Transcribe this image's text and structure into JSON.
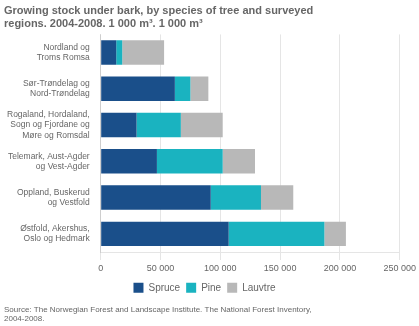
{
  "chart_data": {
    "type": "bar",
    "orientation": "horizontal",
    "stacked": true,
    "title": "Growing stock under bark, by species of tree and surveyed\nregions. 2004-2008. 1 000 m³. 1 000 m³",
    "annotations": [
      "Source: The Norwegian Forest and Landscape Institute. The National Forest Inventory,\n2004-2008."
    ],
    "categories": [
      "Nordland og\nTroms Romsa",
      "Sør-Trøndelag og\nNord-Trøndelag",
      "Rogaland, Hordaland,\nSogn og Fjordane og\nMøre og Romsdal",
      "Telemark, Aust-Agder\nog Vest-Agder",
      "Oppland, Buskerud\nog Vestfold",
      "Østfold, Akershus,\nOslo og Hedmark"
    ],
    "series": [
      {
        "name": "Spruce",
        "color": "#1a4f8a",
        "values": [
          13000,
          62000,
          30000,
          47000,
          92000,
          107000
        ]
      },
      {
        "name": "Pine",
        "color": "#1ab3c0",
        "values": [
          5000,
          13000,
          37000,
          55000,
          42000,
          80000
        ]
      },
      {
        "name": "Lauvtre",
        "color": "#b8b8b8",
        "values": [
          35000,
          15000,
          35000,
          27000,
          27000,
          18000
        ]
      }
    ],
    "xlim": [
      0,
      250000
    ],
    "xticks": [
      0,
      {
        "value": 50000,
        "label": "50 000"
      },
      {
        "value": 100000,
        "label": "100 000"
      },
      {
        "value": 150000,
        "label": "150 000"
      },
      {
        "value": 200000,
        "label": "200 000"
      },
      {
        "value": 250000,
        "label": "250 000"
      }
    ],
    "grid": true,
    "legend": "bottom"
  }
}
